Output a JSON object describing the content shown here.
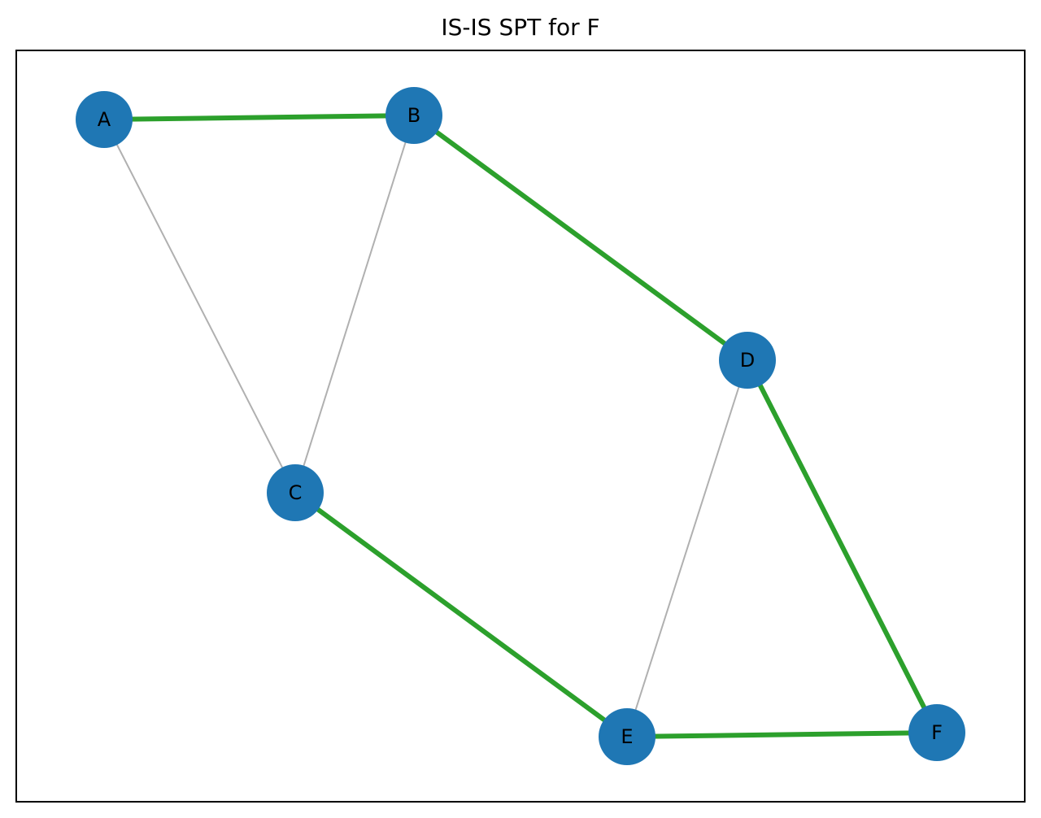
{
  "title": "IS-IS SPT for F",
  "colors": {
    "node_fill": "#1f77b4",
    "node_label": "#000000",
    "spt_edge": "#2ca02c",
    "other_edge": "#b0b0b0",
    "frame": "#000000"
  },
  "nodes": [
    {
      "id": "A",
      "label": "A"
    },
    {
      "id": "B",
      "label": "B"
    },
    {
      "id": "C",
      "label": "C"
    },
    {
      "id": "D",
      "label": "D"
    },
    {
      "id": "E",
      "label": "E"
    },
    {
      "id": "F",
      "label": "F"
    }
  ],
  "edges": [
    {
      "source": "A",
      "target": "B",
      "in_spt": true
    },
    {
      "source": "A",
      "target": "C",
      "in_spt": false
    },
    {
      "source": "B",
      "target": "C",
      "in_spt": false
    },
    {
      "source": "B",
      "target": "D",
      "in_spt": true
    },
    {
      "source": "C",
      "target": "E",
      "in_spt": true
    },
    {
      "source": "D",
      "target": "E",
      "in_spt": false
    },
    {
      "source": "D",
      "target": "F",
      "in_spt": true
    },
    {
      "source": "E",
      "target": "F",
      "in_spt": true
    }
  ]
}
